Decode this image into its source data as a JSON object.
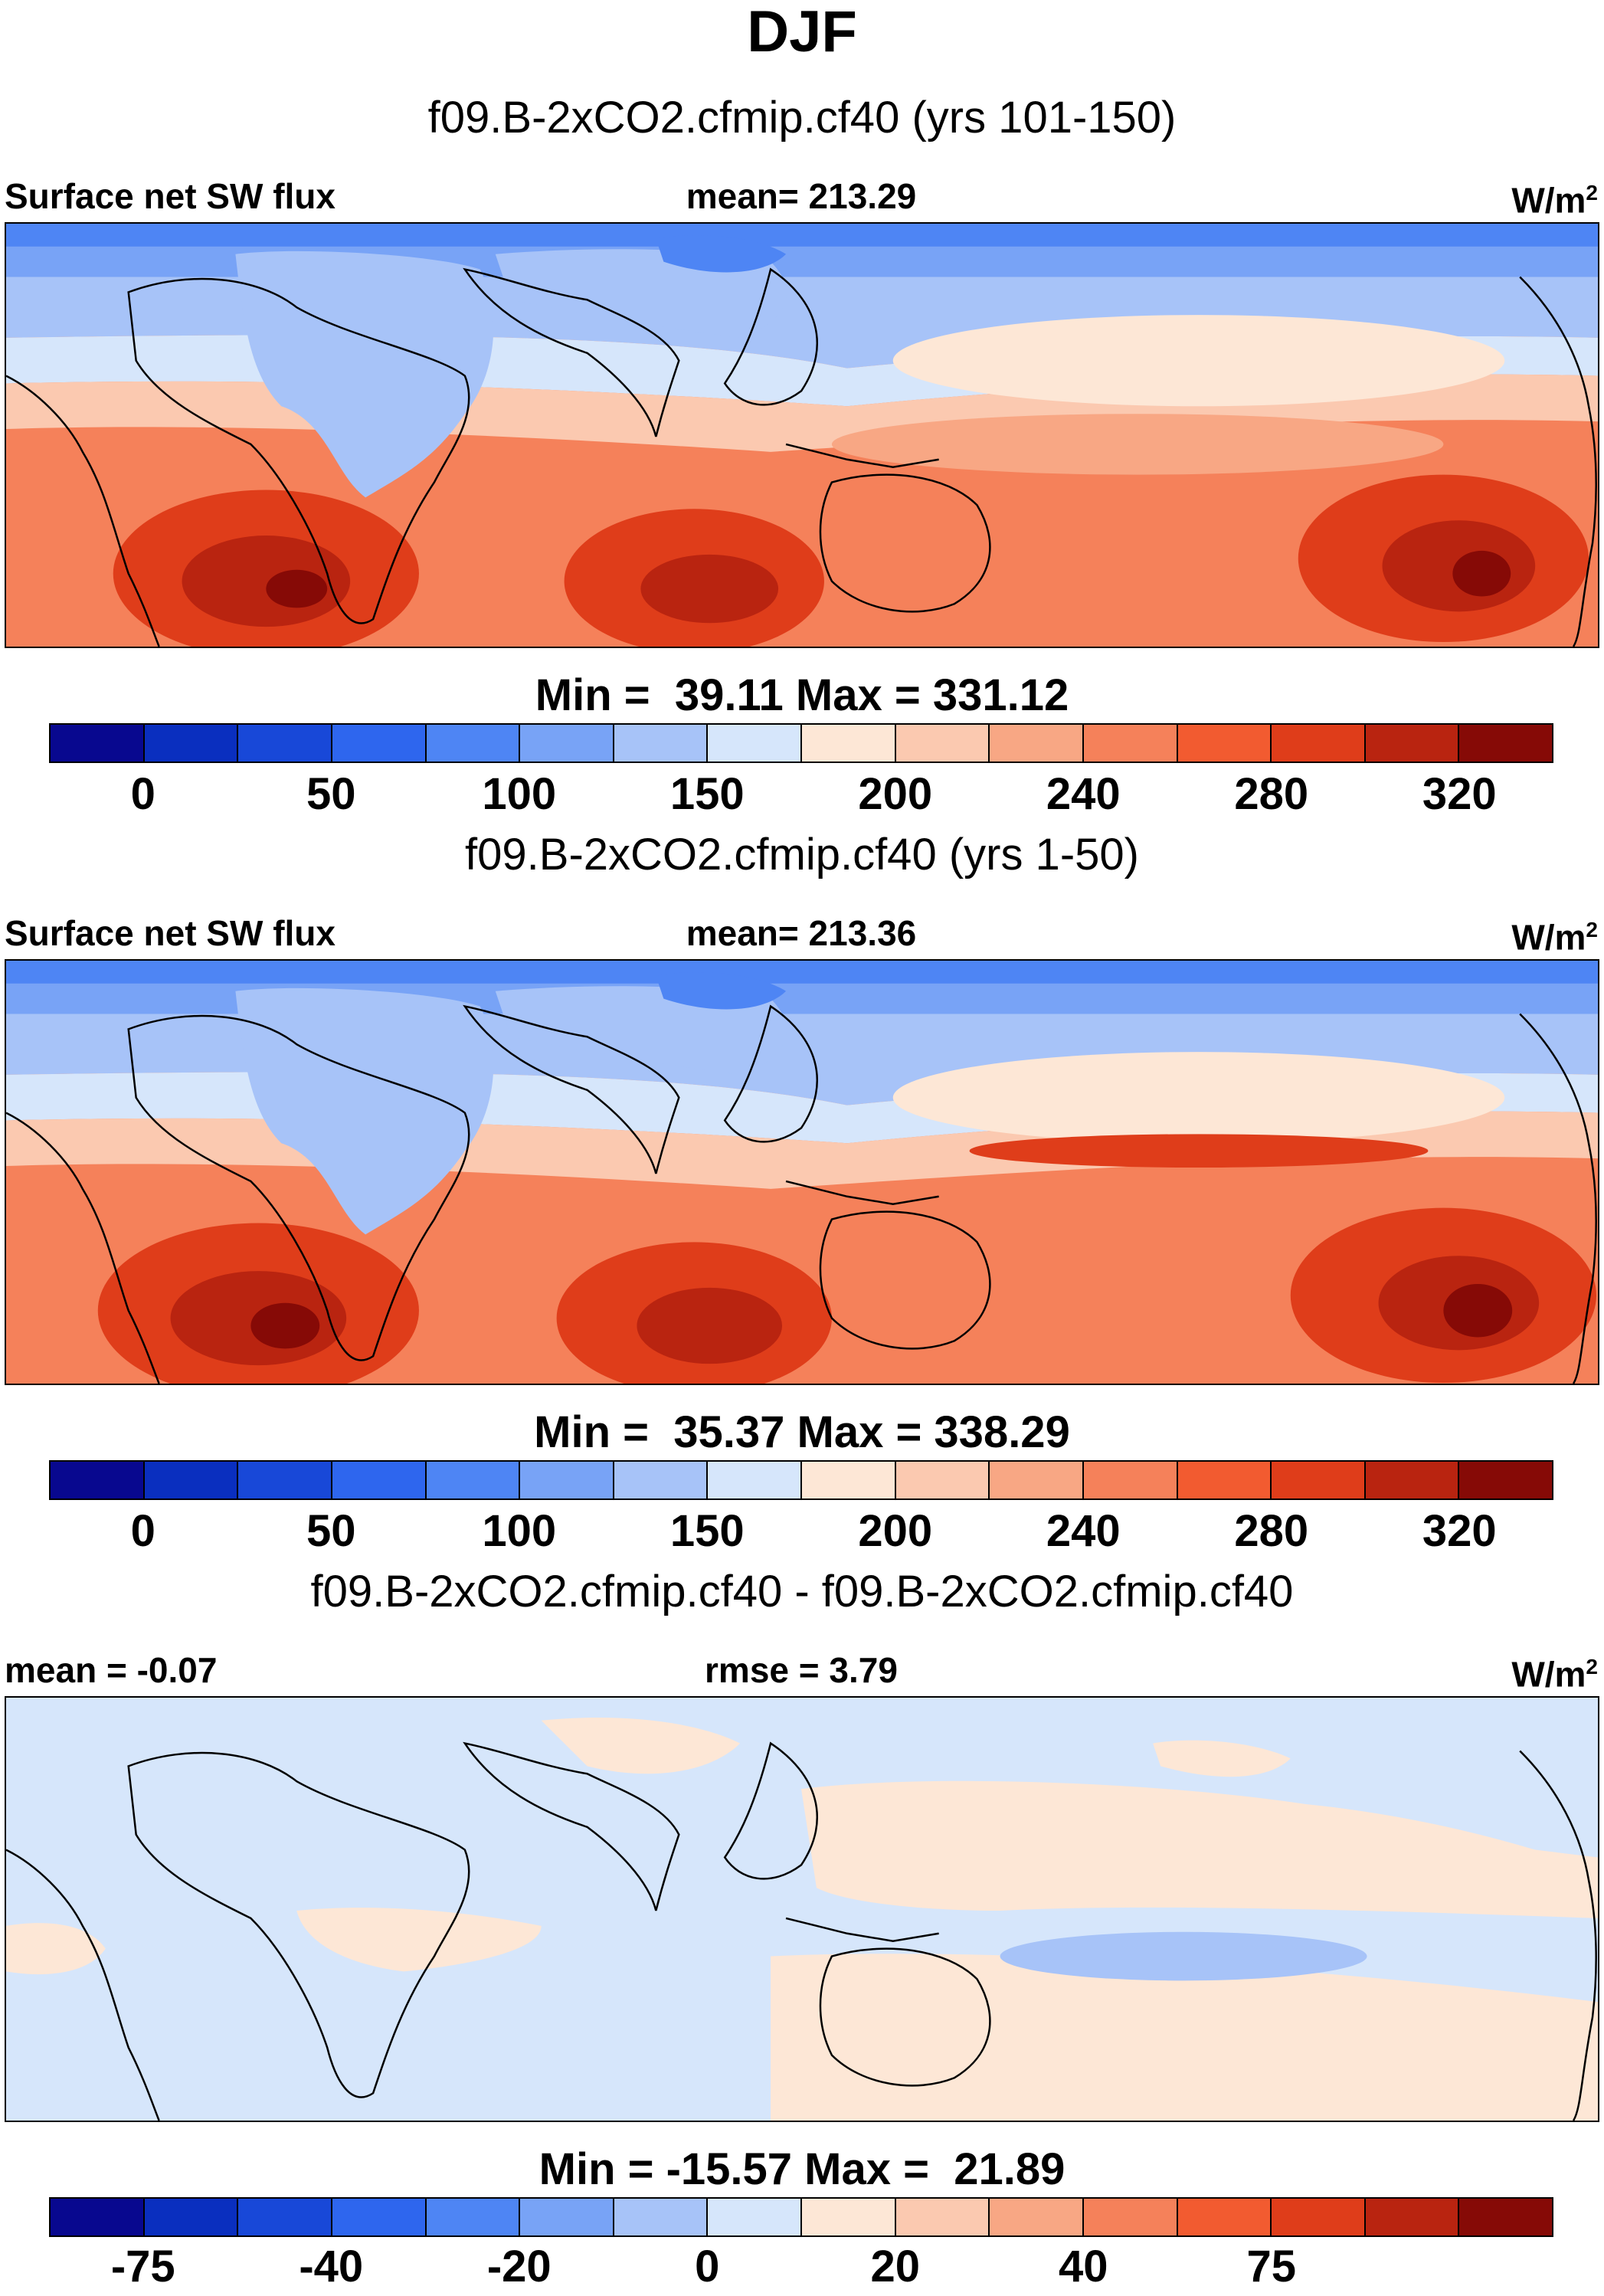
{
  "title": "DJF",
  "units_label": "W/m",
  "units_sup": "2",
  "colors": {
    "abs_scale": [
      "#08088f",
      "#0a2fbf",
      "#1848d8",
      "#2e66ee",
      "#4e85f4",
      "#78a3f6",
      "#a7c3f8",
      "#d6e6fb",
      "#fde7d6",
      "#fbc9b0",
      "#f8a784",
      "#f5815a",
      "#f25b30",
      "#df3d1a",
      "#b92410",
      "#860a06"
    ],
    "diff_scale": [
      "#08088f",
      "#0a2fbf",
      "#1848d8",
      "#2e66ee",
      "#4e85f4",
      "#78a3f6",
      "#a7c3f8",
      "#d6e6fb",
      "#fde7d6",
      "#fbc9b0",
      "#f8a784",
      "#f5815a",
      "#f25b30",
      "#df3d1a",
      "#b92410",
      "#860a06"
    ]
  },
  "panels": [
    {
      "case_title": "f09.B-2xCO2.cfmip.cf40 (yrs 101-150)",
      "left_label": "Surface net SW flux",
      "mid_label": "mean= 213.29",
      "minmax": "Min =  39.11 Max = 331.12",
      "ticks": [
        "0",
        "50",
        "100",
        "150",
        "200",
        "240",
        "280",
        "320"
      ]
    },
    {
      "case_title": "f09.B-2xCO2.cfmip.cf40 (yrs 1-50)",
      "left_label": "Surface net SW flux",
      "mid_label": "mean= 213.36",
      "minmax": "Min =  35.37 Max = 338.29",
      "ticks": [
        "0",
        "50",
        "100",
        "150",
        "200",
        "240",
        "280",
        "320"
      ]
    },
    {
      "case_title": "f09.B-2xCO2.cfmip.cf40 - f09.B-2xCO2.cfmip.cf40",
      "left_label": "mean =  -0.07",
      "mid_label": "rmse =   3.79",
      "minmax": "Min = -15.57 Max =  21.89",
      "ticks": [
        "-75",
        "-40",
        "-20",
        "0",
        "20",
        "40",
        "75"
      ]
    }
  ]
}
